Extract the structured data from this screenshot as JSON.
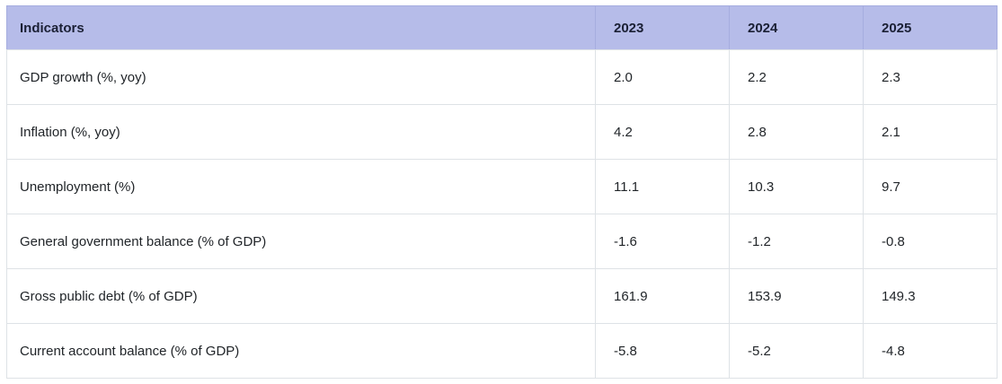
{
  "table": {
    "header": {
      "indicator": "Indicators",
      "years": [
        "2023",
        "2024",
        "2025"
      ]
    },
    "rows": [
      {
        "label": "GDP growth (%, yoy)",
        "values": [
          "2.0",
          "2.2",
          "2.3"
        ]
      },
      {
        "label": "Inflation (%, yoy)",
        "values": [
          "4.2",
          "2.8",
          "2.1"
        ]
      },
      {
        "label": "Unemployment (%)",
        "values": [
          "11.1",
          "10.3",
          "9.7"
        ]
      },
      {
        "label": "General government balance (% of GDP)",
        "values": [
          "-1.6",
          "-1.2",
          "-0.8"
        ]
      },
      {
        "label": "Gross public debt (% of GDP)",
        "values": [
          "161.9",
          "153.9",
          "149.3"
        ]
      },
      {
        "label": "Current account balance (% of GDP)",
        "values": [
          "-5.8",
          "-5.2",
          "-4.8"
        ]
      }
    ]
  },
  "colors": {
    "header_bg": "#b6bce9",
    "row_bg": "#ffffff",
    "border": "#dee2e6",
    "text": "#212529"
  },
  "chart_data": {
    "type": "table",
    "title": "",
    "columns": [
      "Indicators",
      "2023",
      "2024",
      "2025"
    ],
    "rows": [
      [
        "GDP growth (%, yoy)",
        2.0,
        2.2,
        2.3
      ],
      [
        "Inflation (%, yoy)",
        4.2,
        2.8,
        2.1
      ],
      [
        "Unemployment (%)",
        11.1,
        10.3,
        9.7
      ],
      [
        "General government balance (% of GDP)",
        -1.6,
        -1.2,
        -0.8
      ],
      [
        "Gross public debt (% of GDP)",
        161.9,
        153.9,
        149.3
      ],
      [
        "Current account balance (% of GDP)",
        -5.8,
        -5.2,
        -4.8
      ]
    ]
  }
}
